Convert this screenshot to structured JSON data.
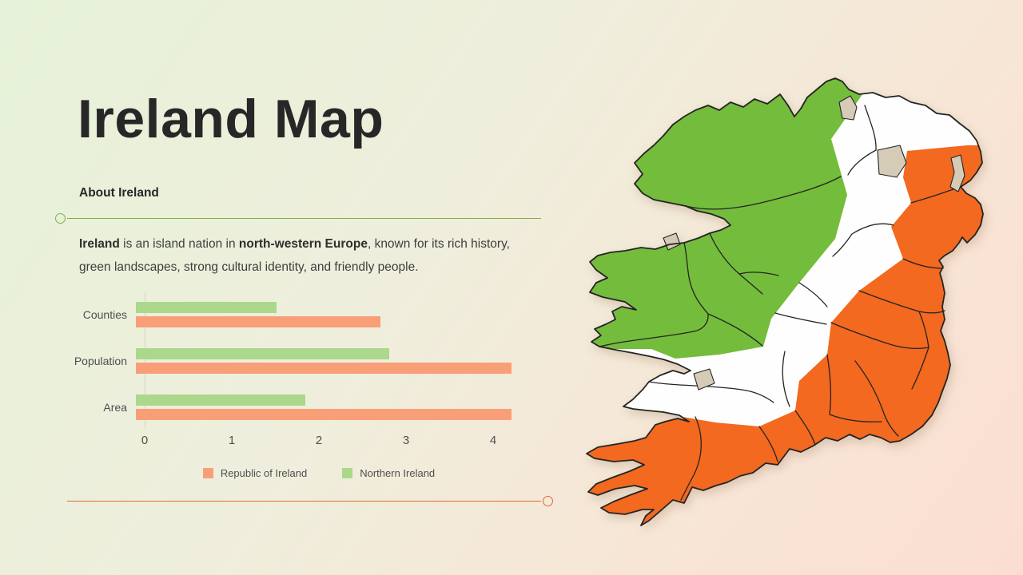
{
  "title": "Ireland Map",
  "about": {
    "heading": "About Ireland",
    "description_parts": [
      {
        "text": "Ireland",
        "bold": true
      },
      {
        "text": " is an island nation in ",
        "bold": false
      },
      {
        "text": "north-western Europe",
        "bold": true
      },
      {
        "text": ", known for its rich history, green landscapes, strong cultural identity, and friendly people.",
        "bold": false
      }
    ]
  },
  "chart_data": {
    "type": "bar",
    "orientation": "horizontal",
    "title": "",
    "xlabel": "",
    "ylabel": "",
    "categories": [
      "Counties",
      "Population",
      "Area"
    ],
    "series": [
      {
        "name": "Northern Ireland",
        "color": "#ABD88B",
        "values": [
          1.5,
          2.7,
          1.8
        ]
      },
      {
        "name": "Republic of Ireland",
        "color": "#F99F78",
        "values": [
          2.6,
          4.0,
          4.0
        ]
      }
    ],
    "x_ticks": [
      0,
      1,
      2,
      3,
      4
    ],
    "xlim": [
      0,
      4
    ],
    "grid": false,
    "legend_position": "bottom-center",
    "legend": [
      {
        "label": "Republic of Ireland",
        "color": "#F99F78"
      },
      {
        "label": "Northern Ireland",
        "color": "#ABD88B"
      }
    ]
  },
  "map": {
    "description": "county map of the island of Ireland shaded as a diagonal green-white-orange tricolor",
    "regions": [
      {
        "name": "north-west band",
        "color_key": "map_green"
      },
      {
        "name": "middle band",
        "color_key": "map_white"
      },
      {
        "name": "south-east band",
        "color_key": "map_orange"
      }
    ]
  },
  "colors": {
    "bg_from": "#E6F2D9",
    "bg_to": "#FBDED1",
    "title_color": "#272727",
    "text_color": "#3E3E3E",
    "muted_text": "#4F4F4F",
    "axis_line": "#D8D4C6",
    "divider_green": "#7DB342",
    "divider_orange": "#DD6D2F",
    "map_green": "#74BC3B",
    "map_white": "#FEFEFE",
    "map_orange": "#F2691F",
    "map_lake": "#D5CBB7",
    "map_stroke": "#242424"
  }
}
